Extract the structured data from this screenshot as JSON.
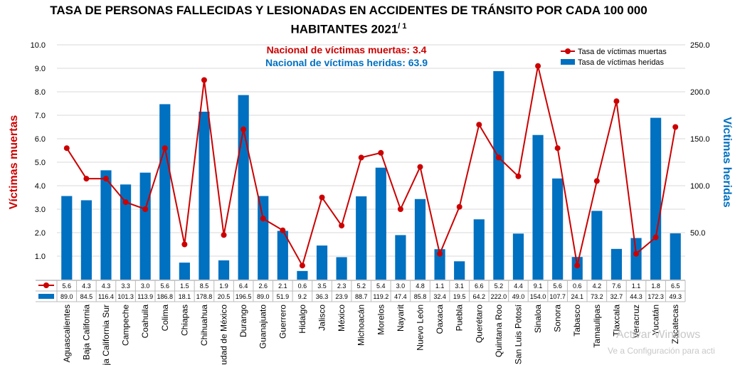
{
  "title_line1": "TASA DE PERSONAS FALLECIDAS Y LESIONADAS EN ACCIDENTES DE TRÁNSITO POR CADA 100 000",
  "title_line2": "HABITANTES 2021",
  "title_sup": "/ 1",
  "watermark": {
    "line1": "Activar Windows",
    "line2": "Ve a Configuración para acti"
  },
  "colors": {
    "muertas": "#cc0000",
    "heridas": "#0070c0",
    "grid": "#d9d9d9"
  },
  "chart_data": {
    "type": "bar",
    "ylabel_left": "Víctimas muertas",
    "ylabel_right": "Víctimas heridas",
    "ylim_left": [
      0,
      10
    ],
    "ylim_right": [
      0,
      250
    ],
    "yticks_left": [
      "1.0",
      "2.0",
      "3.0",
      "4.0",
      "5.0",
      "6.0",
      "7.0",
      "8.0",
      "9.0",
      "10.0"
    ],
    "yticks_right": [
      "50.0",
      "100.0",
      "150.0",
      "200.0",
      "250.0"
    ],
    "annotations": [
      "Nacional de víctimas muertas: 3.4",
      "Nacional de víctimas heridas: 63.9"
    ],
    "legend_position": "top-right",
    "categories": [
      "Aguascalientes",
      "Baja California",
      "Baja California Sur",
      "Campeche",
      "Coahuila",
      "Colima",
      "Chiapas",
      "Chihuahua",
      "Ciudad de México",
      "Durango",
      "Guanajuato",
      "Guerrero",
      "Hidalgo",
      "Jalisco",
      "México",
      "Michoacán",
      "Morelos",
      "Nayarit",
      "Nuevo León",
      "Oaxaca",
      "Puebla",
      "Querétaro",
      "Quintana Roo",
      "San Luis Potosí",
      "Sinaloa",
      "Sonora",
      "Tabasco",
      "Tamaulipas",
      "Tlaxcala",
      "Veracruz",
      "Yucatán",
      "Zacatecas"
    ],
    "series": [
      {
        "name": "Tasa de víctimas muertas",
        "kind": "line",
        "axis": "left",
        "values": [
          5.6,
          4.3,
          4.3,
          3.3,
          3.0,
          5.6,
          1.5,
          8.5,
          1.9,
          6.4,
          2.6,
          2.1,
          0.6,
          3.5,
          2.3,
          5.2,
          5.4,
          3.0,
          4.8,
          1.1,
          3.1,
          6.6,
          5.2,
          4.4,
          9.1,
          5.6,
          0.6,
          4.2,
          7.6,
          1.1,
          1.8,
          6.5
        ],
        "labels": [
          "5.6",
          "4.3",
          "4.3",
          "3.3",
          "3.0",
          "5.6",
          "1.5",
          "8.5",
          "1.9",
          "6.4",
          "2.6",
          "2.1",
          "0.6",
          "3.5",
          "2.3",
          "5.2",
          "5.4",
          "3.0",
          "4.8",
          "1.1",
          "3.1",
          "6.6",
          "5.2",
          "4.4",
          "9.1",
          "5.6",
          "0.6",
          "4.2",
          "7.6",
          "1.1",
          "1.8",
          "6.5"
        ]
      },
      {
        "name": "Tasa de víctimas heridas",
        "kind": "bar",
        "axis": "right",
        "values": [
          89.0,
          84.5,
          116.4,
          101.3,
          113.9,
          186.8,
          18.1,
          178.8,
          20.5,
          196.5,
          89.0,
          51.9,
          9.2,
          36.3,
          23.9,
          88.7,
          119.2,
          47.4,
          85.8,
          32.4,
          19.5,
          64.2,
          222.0,
          49.0,
          154.0,
          107.7,
          24.1,
          73.2,
          32.7,
          44.3,
          172.3,
          49.3
        ],
        "labels": [
          "89.0",
          "84.5",
          "116.4",
          "101.3",
          "113.9",
          "186.8",
          "18.1",
          "178.8",
          "20.5",
          "196.5",
          "89.0",
          "51.9",
          "9.2",
          "36.3",
          "23.9",
          "88.7",
          "119.2",
          "47.4",
          "85.8",
          "32.4",
          "19.5",
          "64.2",
          "222.0",
          "49.0",
          "154.0",
          "107.7",
          "24.1",
          "73.2",
          "32.7",
          "44.3",
          "172.3",
          "49.3"
        ]
      }
    ]
  }
}
